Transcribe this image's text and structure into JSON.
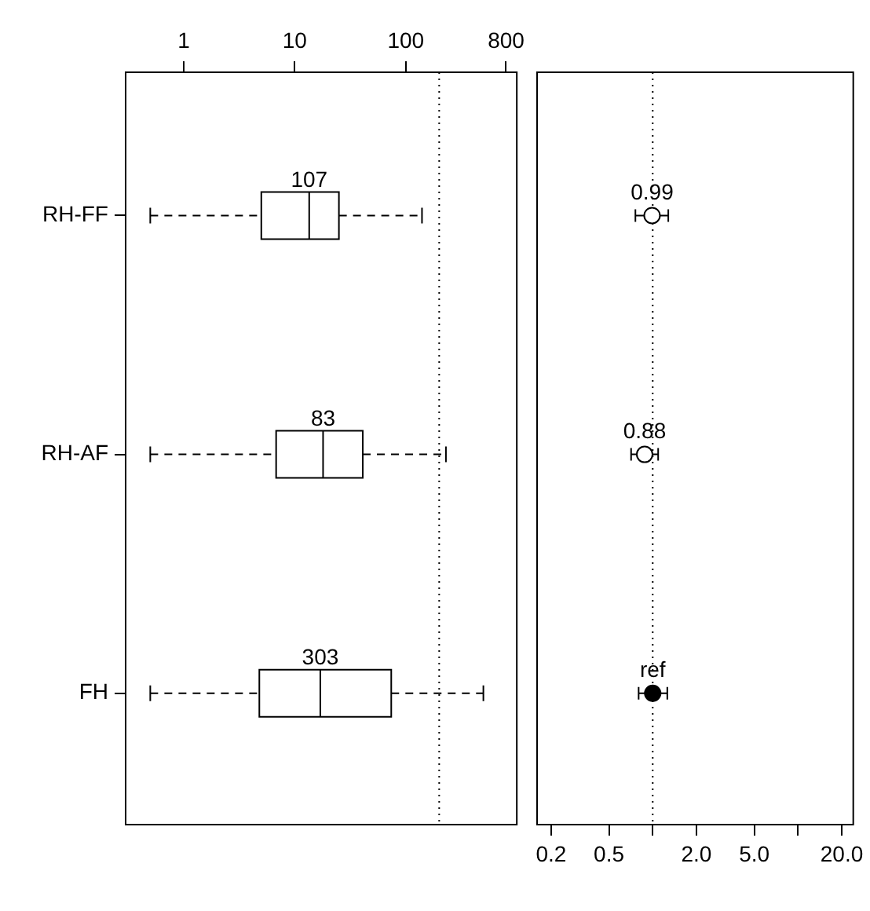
{
  "chart_data": [
    {
      "type": "box",
      "orientation": "horizontal",
      "categories": [
        "RH-FF",
        "RH-AF",
        "FH"
      ],
      "log": "x",
      "xlim": [
        0.3,
        1000
      ],
      "xticks": [
        1,
        10,
        100,
        800
      ],
      "boxes": [
        {
          "low": 0.5,
          "q1": 5,
          "median": 13.5,
          "q3": 25,
          "high": 140
        },
        {
          "low": 0.5,
          "q1": 6.8,
          "median": 18,
          "q3": 41,
          "high": 230
        },
        {
          "low": 0.5,
          "q1": 4.8,
          "median": 17,
          "q3": 74,
          "high": 500
        }
      ],
      "ref_lines": [
        {
          "axis": "x",
          "value": 200,
          "line_style": "dotted"
        }
      ],
      "annotations": [
        {
          "text": "107",
          "x": 13.5,
          "y": "RH-FF"
        },
        {
          "text": "83",
          "x": 18,
          "y": "RH-AF"
        },
        {
          "text": "303",
          "x": 17,
          "y": "FH"
        }
      ]
    },
    {
      "type": "scatter",
      "orientation": "horizontal",
      "categories": [
        null,
        null,
        null
      ],
      "tick_labels": "x",
      "log": "x",
      "xlim": [
        0.16,
        24
      ],
      "xticks": [
        0.2,
        0.5,
        {
          "value": 1,
          "label": null
        },
        {
          "value": 2,
          "label": "2.0"
        },
        {
          "value": 5,
          "label": "5.0"
        },
        {
          "value": 10,
          "label": null
        },
        {
          "value": 20,
          "label": "20.0"
        }
      ],
      "marker": "circle",
      "series": [
        {
          "color": "#000000",
          "colors": [
            "#ffffff",
            "#ffffff",
            "#000000"
          ],
          "values": [
            0.99,
            0.88,
            1
          ],
          "errors": [
            [
              0.76,
              1.28
            ],
            [
              0.71,
              1.09
            ],
            [
              0.8,
              1.26
            ]
          ],
          "value_labels": [
            "0.99",
            "0.88",
            "ref"
          ]
        }
      ],
      "ref_lines": [
        {
          "axis": "x",
          "value": 1,
          "line_style": "dotted"
        }
      ]
    }
  ]
}
